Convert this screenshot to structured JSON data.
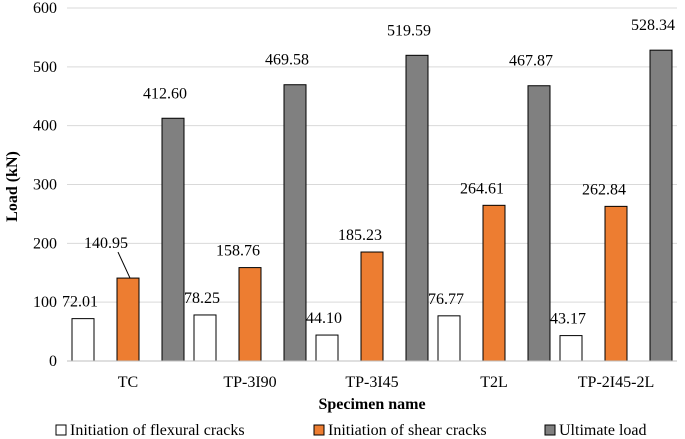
{
  "chart_data": {
    "type": "bar",
    "title": "",
    "xlabel": "Specimen name",
    "ylabel": "Load (kN)",
    "ylim": [
      0,
      600
    ],
    "yticks": [
      0,
      100,
      200,
      300,
      400,
      500,
      600
    ],
    "grid": true,
    "legend_position": "bottom",
    "categories": [
      "TC",
      "TP-3I90",
      "TP-3I45",
      "T2L",
      "TP-2I45-2L"
    ],
    "series": [
      {
        "name": "Initiation of flexural cracks",
        "color": "#ffffff",
        "values": [
          72.01,
          78.25,
          44.1,
          76.77,
          43.17
        ],
        "labels": [
          "72.01",
          "78.25",
          "44.10",
          "76.77",
          "43.17"
        ]
      },
      {
        "name": "Initiation of shear cracks",
        "color": "#ed7d31",
        "values": [
          140.95,
          158.76,
          185.23,
          264.61,
          262.84
        ],
        "labels": [
          "140.95",
          "158.76",
          "185.23",
          "264.61",
          "262.84"
        ]
      },
      {
        "name": "Ultimate load",
        "color": "#808080",
        "values": [
          412.6,
          469.58,
          519.59,
          467.87,
          528.34
        ],
        "labels": [
          "412.60",
          "469.58",
          "519.59",
          "467.87",
          "528.34"
        ]
      }
    ]
  }
}
